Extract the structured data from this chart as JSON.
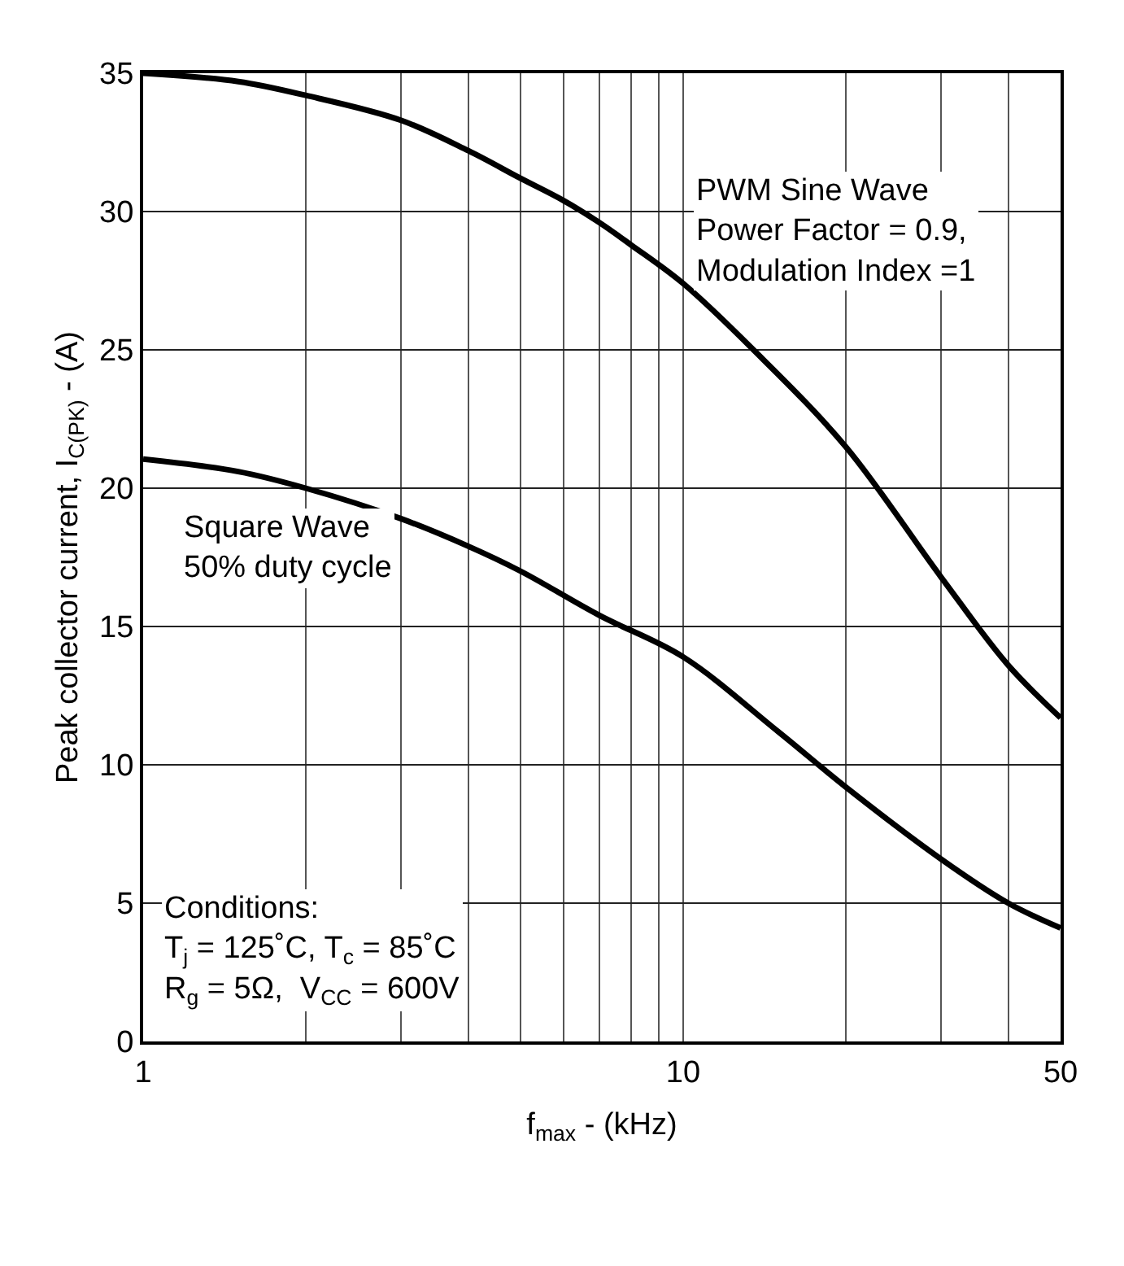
{
  "chart_data": {
    "type": "line",
    "xlabel": "f$_{max}$ - (kHz)",
    "ylabel": "Peak collector current, I$_{C(PK)}$ - (A)",
    "log": "x",
    "xlim": [
      1,
      50
    ],
    "xticks": [
      1,
      {
        "value": 2,
        "label": null
      },
      {
        "value": 3,
        "label": null
      },
      {
        "value": 4,
        "label": null
      },
      {
        "value": 5,
        "label": null
      },
      {
        "value": 6,
        "label": null
      },
      {
        "value": 7,
        "label": null
      },
      {
        "value": 8,
        "label": null
      },
      {
        "value": 9,
        "label": null
      },
      10,
      {
        "value": 20,
        "label": null
      },
      {
        "value": 30,
        "label": null
      },
      {
        "value": 40,
        "label": null
      },
      50
    ],
    "ylim": [
      0,
      35
    ],
    "yticks": [
      0,
      5,
      10,
      15,
      20,
      25,
      30,
      35
    ],
    "grid": true,
    "series": [
      {
        "color": "#000000",
        "x": [
          1,
          1.5,
          2,
          3,
          4,
          5,
          6,
          7,
          8,
          10,
          13.5,
          20,
          30,
          40,
          50
        ],
        "values": [
          35,
          34.7,
          34.2,
          33.3,
          32.2,
          31.2,
          30.4,
          29.6,
          28.8,
          27.4,
          25,
          21.5,
          16.8,
          13.6,
          11.7
        ]
      },
      {
        "color": "#000000",
        "x": [
          1,
          1.5,
          2,
          3,
          4,
          5,
          7,
          10,
          15,
          20,
          30,
          40,
          50
        ],
        "values": [
          21.05,
          20.6,
          20,
          18.9,
          17.9,
          17,
          15.4,
          13.9,
          11.2,
          9.2,
          6.6,
          5,
          4.1
        ]
      }
    ],
    "annotations": [
      "PWM Sine Wave\nPower Factor = 0.9,\nModulation Index =1",
      "Square Wave\n50% duty cycle",
      "Conditions:\nT$_{j}$ = 125˚C, T$_{c}$ = 85˚C\nR$_{g}$ = 5Ω,  V$_{CC}$ = 600V"
    ]
  }
}
